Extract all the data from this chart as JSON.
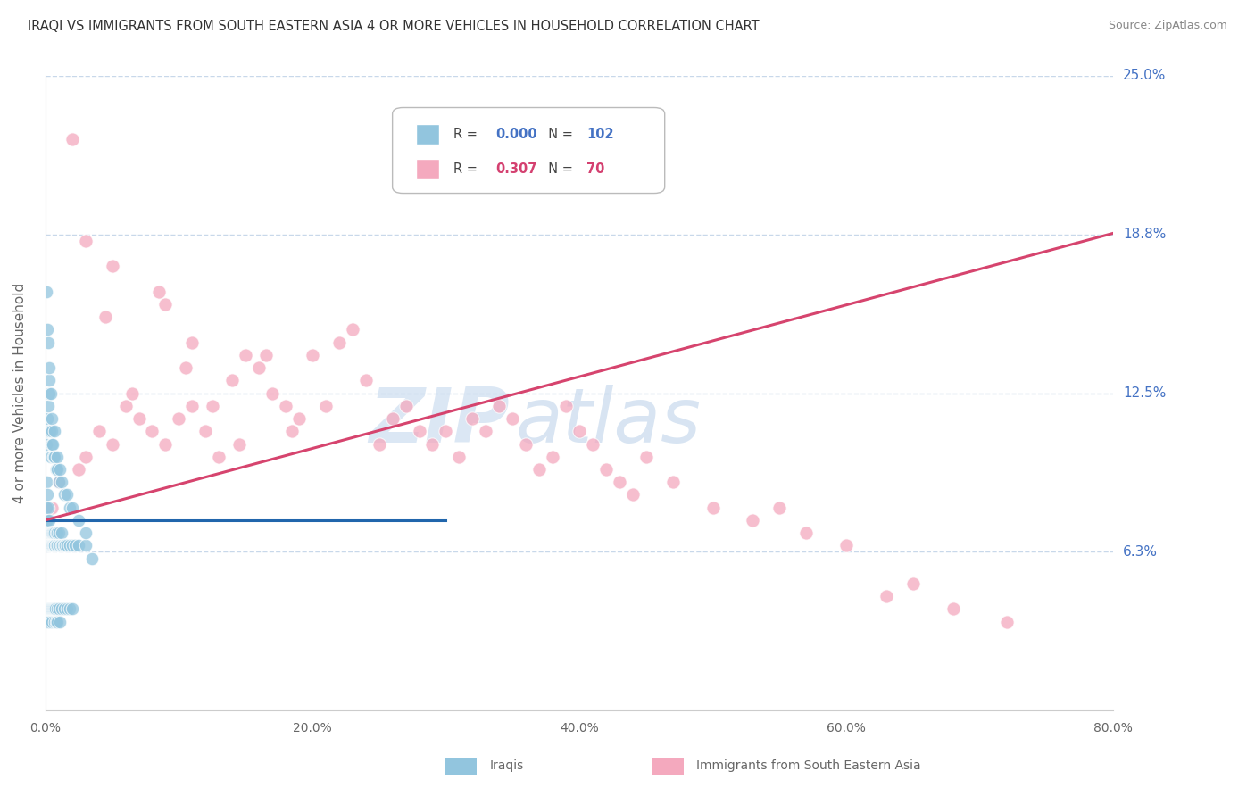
{
  "title": "IRAQI VS IMMIGRANTS FROM SOUTH EASTERN ASIA 4 OR MORE VEHICLES IN HOUSEHOLD CORRELATION CHART",
  "source": "Source: ZipAtlas.com",
  "ylabel": "4 or more Vehicles in Household",
  "xmin": 0.0,
  "xmax": 80.0,
  "ymin": 0.0,
  "ymax": 25.0,
  "xtick_vals": [
    0.0,
    20.0,
    40.0,
    60.0,
    80.0
  ],
  "xtick_labels": [
    "0.0%",
    "20.0%",
    "40.0%",
    "60.0%",
    "80.0%"
  ],
  "ytick_vals": [
    6.25,
    12.5,
    18.75,
    25.0
  ],
  "ytick_labels": [
    "6.3%",
    "12.5%",
    "18.8%",
    "25.0%"
  ],
  "legend_r": [
    0.0,
    0.307
  ],
  "legend_n": [
    102,
    70
  ],
  "blue_color": "#92c5de",
  "pink_color": "#f4a9be",
  "blue_line_color": "#2166ac",
  "pink_line_color": "#d6446e",
  "watermark_zip": "ZIP",
  "watermark_atlas": "atlas",
  "grid_color": "#c8d8ea",
  "axis_label_color": "#4472c4",
  "title_color": "#333333",
  "source_color": "#888888",
  "iraqis_x": [
    0.05,
    0.1,
    0.1,
    0.15,
    0.15,
    0.2,
    0.2,
    0.25,
    0.25,
    0.3,
    0.3,
    0.35,
    0.35,
    0.4,
    0.4,
    0.45,
    0.45,
    0.5,
    0.5,
    0.55,
    0.55,
    0.6,
    0.6,
    0.65,
    0.7,
    0.7,
    0.8,
    0.8,
    0.9,
    0.9,
    1.0,
    1.0,
    1.1,
    1.2,
    1.2,
    1.3,
    1.4,
    1.5,
    1.6,
    1.8,
    2.0,
    2.2,
    2.5,
    3.0,
    3.5,
    0.05,
    0.1,
    0.15,
    0.2,
    0.25,
    0.3,
    0.35,
    0.4,
    0.45,
    0.5,
    0.55,
    0.6,
    0.65,
    0.7,
    0.75,
    0.8,
    0.85,
    0.9,
    1.0,
    1.1,
    1.2,
    1.4,
    1.6,
    1.8,
    2.0,
    0.05,
    0.1,
    0.15,
    0.2,
    0.25,
    0.3,
    0.35,
    0.4,
    0.45,
    0.5,
    0.55,
    0.6,
    0.7,
    0.8,
    0.9,
    1.0,
    1.2,
    1.4,
    1.6,
    1.8,
    2.0,
    2.5,
    3.0,
    0.1,
    0.15,
    0.2,
    0.3,
    0.4,
    0.5,
    0.7,
    0.9,
    1.1
  ],
  "iraqis_y": [
    8.0,
    7.5,
    9.0,
    7.5,
    8.5,
    7.0,
    8.0,
    6.5,
    7.5,
    6.5,
    7.0,
    6.5,
    7.0,
    6.5,
    7.0,
    6.5,
    7.0,
    6.5,
    7.0,
    6.5,
    7.0,
    6.5,
    7.0,
    6.5,
    6.5,
    7.0,
    6.5,
    7.0,
    6.5,
    7.0,
    6.5,
    7.0,
    6.5,
    6.5,
    7.0,
    6.5,
    6.5,
    6.5,
    6.5,
    6.5,
    6.5,
    6.5,
    6.5,
    6.5,
    6.0,
    3.5,
    4.0,
    3.5,
    4.0,
    4.0,
    3.5,
    4.0,
    4.0,
    4.0,
    3.5,
    4.0,
    4.0,
    3.5,
    4.0,
    4.0,
    3.5,
    4.0,
    3.5,
    4.0,
    3.5,
    4.0,
    4.0,
    4.0,
    4.0,
    4.0,
    10.5,
    11.0,
    11.5,
    12.0,
    12.5,
    13.0,
    11.0,
    10.0,
    10.5,
    11.0,
    10.5,
    10.0,
    10.0,
    9.5,
    9.5,
    9.0,
    9.0,
    8.5,
    8.5,
    8.0,
    8.0,
    7.5,
    7.0,
    16.5,
    15.0,
    14.5,
    13.5,
    12.5,
    11.5,
    11.0,
    10.0,
    9.5
  ],
  "sea_x": [
    0.5,
    1.0,
    2.0,
    3.0,
    4.0,
    5.0,
    6.0,
    7.0,
    8.0,
    9.0,
    10.0,
    11.0,
    12.0,
    13.0,
    14.0,
    15.0,
    16.0,
    17.0,
    18.0,
    19.0,
    20.0,
    21.0,
    22.0,
    23.0,
    24.0,
    25.0,
    26.0,
    27.0,
    28.0,
    29.0,
    30.0,
    31.0,
    32.0,
    33.0,
    34.0,
    35.0,
    36.0,
    37.0,
    38.0,
    39.0,
    40.0,
    41.0,
    42.0,
    43.0,
    44.0,
    45.0,
    47.0,
    50.0,
    53.0,
    55.0,
    57.0,
    60.0,
    63.0,
    65.0,
    68.0,
    72.0,
    2.5,
    4.5,
    6.5,
    8.5,
    10.5,
    12.5,
    14.5,
    16.5,
    18.5,
    3.0,
    5.0,
    9.0,
    11.0
  ],
  "sea_y": [
    8.0,
    9.0,
    22.5,
    10.0,
    11.0,
    10.5,
    12.0,
    11.5,
    11.0,
    10.5,
    11.5,
    12.0,
    11.0,
    10.0,
    13.0,
    14.0,
    13.5,
    12.5,
    12.0,
    11.5,
    14.0,
    12.0,
    14.5,
    15.0,
    13.0,
    10.5,
    11.5,
    12.0,
    11.0,
    10.5,
    11.0,
    10.0,
    11.5,
    11.0,
    12.0,
    11.5,
    10.5,
    9.5,
    10.0,
    12.0,
    11.0,
    10.5,
    9.5,
    9.0,
    8.5,
    10.0,
    9.0,
    8.0,
    7.5,
    8.0,
    7.0,
    6.5,
    4.5,
    5.0,
    4.0,
    3.5,
    9.5,
    15.5,
    12.5,
    16.5,
    13.5,
    12.0,
    10.5,
    14.0,
    11.0,
    18.5,
    17.5,
    16.0,
    14.5
  ],
  "blue_trend_x": [
    0.0,
    30.0
  ],
  "blue_trend_y": [
    7.5,
    7.5
  ],
  "pink_trend_x_start": 0.0,
  "pink_trend_x_end": 80.0,
  "pink_trend_y_start": 7.5,
  "pink_trend_y_end": 18.8
}
